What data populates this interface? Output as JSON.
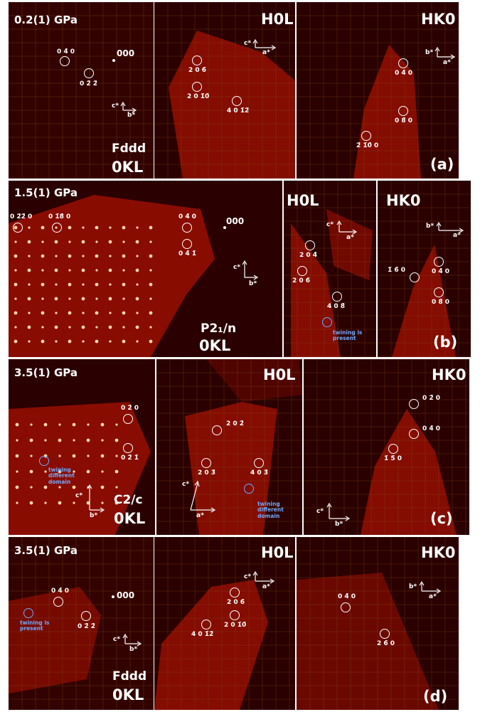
{
  "figure": {
    "rows": [
      {
        "pressure": "0.2(1) GPa",
        "panel_label": "(a)",
        "okl": {
          "space_group": "Fddd",
          "plane": "0KL",
          "origin": "000",
          "reflections": [
            "0 4̄ 0",
            "0 2̄ 2̄"
          ],
          "axes": {
            "v": "c*",
            "h": "b*"
          }
        },
        "h0l": {
          "plane": "H0L",
          "reflections": [
            "2 0 6̄",
            "2 0 1̄0̄",
            "4 0 1̄2̄"
          ],
          "axes": {
            "v": "c*",
            "h": "a*"
          }
        },
        "hk0": {
          "plane": "HK0",
          "reflections": [
            "0 4̄ 0",
            "0 8̄ 0",
            "2̄ 1̄0̄ 0"
          ],
          "axes": {
            "v": "b*",
            "h": "a*"
          }
        }
      },
      {
        "pressure": "1.5(1) GPa",
        "panel_label": "(b)",
        "okl": {
          "space_group": "P2₁/n",
          "plane": "0KL",
          "origin": "000",
          "reflections": [
            "0 2̄2̄ 0",
            "0 1̄8̄ 0",
            "0 4̄ 0",
            "0 4̄ 1̄"
          ],
          "axes": {
            "v": "c*",
            "h": "b*"
          }
        },
        "h0l": {
          "plane": "H0L",
          "reflections": [
            "2 0 4̄",
            "2 0 6̄",
            "4 0 8̄"
          ],
          "note": "twining is present",
          "axes": {
            "v": "c*",
            "h": "a*"
          }
        },
        "hk0": {
          "plane": "HK0",
          "reflections": [
            "1̄ 6̄ 0",
            "0 4̄ 0",
            "0 8̄ 0"
          ],
          "axes": {
            "v": "b*",
            "h": "a*"
          }
        }
      },
      {
        "pressure": "3.5(1) GPa",
        "panel_label": "(c)",
        "okl": {
          "space_group": "C2/c",
          "plane": "0KL",
          "reflections": [
            "0 2̄ 0",
            "0 2̄ 1̄"
          ],
          "note": "twining different domain",
          "axes": {
            "v": "c*",
            "h": "b*"
          }
        },
        "h0l": {
          "plane": "H0L",
          "reflections": [
            "2 0 2̄",
            "2 0 3̄",
            "4 0 3̄"
          ],
          "note": "twining different domain",
          "axes": {
            "v": "c*",
            "h": "a*"
          }
        },
        "hk0": {
          "plane": "HK0",
          "reflections": [
            "0 2̄ 0",
            "0 4̄ 0",
            "1̄ 5̄ 0"
          ],
          "axes": {
            "v": "c*",
            "h": "b*"
          }
        }
      },
      {
        "pressure": "3.5(1) GPa",
        "panel_label": "(d)",
        "okl": {
          "space_group": "Fddd",
          "plane": "0KL",
          "origin": "000",
          "reflections": [
            "0 4̄ 0",
            "0 2̄ 2̄"
          ],
          "note": "twining is present",
          "axes": {
            "v": "c*",
            "h": "b*"
          }
        },
        "h0l": {
          "plane": "H0L",
          "reflections": [
            "2 0 6̄",
            "2 0 1̄0̄",
            "4 0 1̄2̄"
          ],
          "axes": {
            "v": "c*",
            "h": "a*"
          }
        },
        "hk0": {
          "plane": "HK0",
          "reflections": [
            "0 4̄ 0",
            "2 6̄ 0"
          ],
          "axes": {
            "v": "b*",
            "h": "a*"
          }
        }
      }
    ],
    "colors": {
      "background": "#2a0000",
      "detector": "#8e0d00",
      "spot": "#ffd0a0",
      "grid": "#8a5a22",
      "twin_ring": "#6fa8ff"
    }
  }
}
